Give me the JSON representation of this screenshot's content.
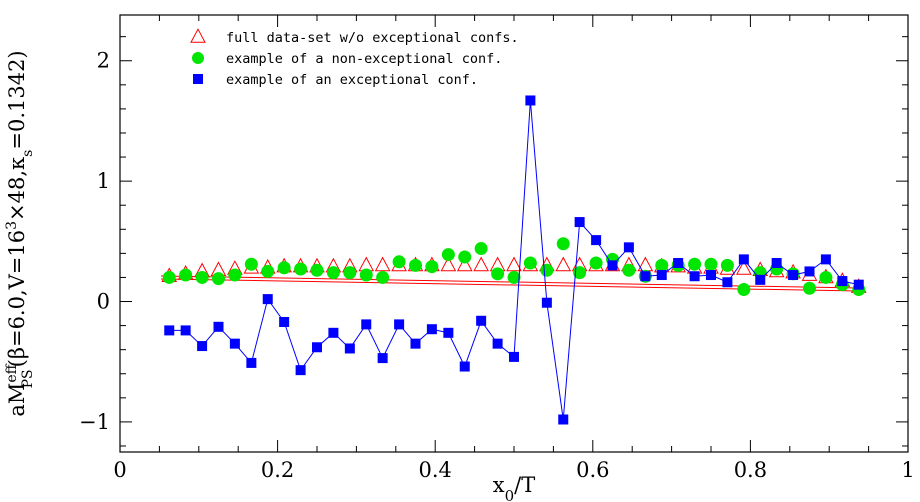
{
  "chart_data": {
    "type": "scatter",
    "xlabel": "x0/T",
    "ylabel": "aMPSeff(β=6.0,V=163×48,κs=0.1342)",
    "xlabel_parts": {
      "main": "x",
      "sub": "0",
      "rest": "/T"
    },
    "ylabel_parts": {
      "prefix": "aM",
      "sup": "eff",
      "sub": "PS",
      "mid": "(β=6.0,V=16",
      "sup2": "3",
      "tail": "×48,κ",
      "sub2": "s",
      "end": "=0.1342)"
    },
    "xlim": [
      0,
      1
    ],
    "ylim": [
      -1.25,
      2.38
    ],
    "x_ticks": [
      0,
      0.2,
      0.4,
      0.6,
      0.8,
      1
    ],
    "x_tick_labels": [
      "0",
      "0.2",
      "0.4",
      "0.6",
      "0.8",
      "1"
    ],
    "y_ticks": [
      -1,
      0,
      1,
      2
    ],
    "y_tick_labels": [
      "−1",
      "0",
      "1",
      "2"
    ],
    "legend_position": "top-left",
    "series": [
      {
        "name": "full data-set w/o exceptional confs.",
        "marker": "triangle-open",
        "color": "#ff0000",
        "fit_line": {
          "x": [
            0.0521,
            0.9375
          ],
          "y": [
            0.2,
            0.1
          ]
        },
        "x": [
          0.0625,
          0.0833,
          0.1042,
          0.125,
          0.1458,
          0.1667,
          0.1875,
          0.2083,
          0.2292,
          0.25,
          0.2708,
          0.2917,
          0.3125,
          0.3333,
          0.3542,
          0.375,
          0.3958,
          0.4167,
          0.4375,
          0.4583,
          0.4792,
          0.5,
          0.5208,
          0.5417,
          0.5625,
          0.5833,
          0.6042,
          0.625,
          0.6458,
          0.6667,
          0.6875,
          0.7083,
          0.7292,
          0.75,
          0.7708,
          0.7917,
          0.8125,
          0.8333,
          0.8542,
          0.875,
          0.8958,
          0.9167,
          0.9375
        ],
        "y": [
          0.21,
          0.23,
          0.25,
          0.26,
          0.27,
          0.28,
          0.28,
          0.29,
          0.29,
          0.29,
          0.29,
          0.29,
          0.3,
          0.3,
          0.3,
          0.3,
          0.3,
          0.3,
          0.3,
          0.3,
          0.3,
          0.3,
          0.3,
          0.3,
          0.3,
          0.3,
          0.3,
          0.3,
          0.3,
          0.3,
          0.29,
          0.29,
          0.28,
          0.28,
          0.27,
          0.27,
          0.26,
          0.25,
          0.24,
          0.22,
          0.2,
          0.17,
          0.12
        ]
      },
      {
        "name": "example of a non-exceptional conf.",
        "marker": "circle-filled",
        "color": "#00e600",
        "x": [
          0.0625,
          0.0833,
          0.1042,
          0.125,
          0.1458,
          0.1667,
          0.1875,
          0.2083,
          0.2292,
          0.25,
          0.2708,
          0.2917,
          0.3125,
          0.3333,
          0.3542,
          0.375,
          0.3958,
          0.4167,
          0.4375,
          0.4583,
          0.4792,
          0.5,
          0.5208,
          0.5417,
          0.5625,
          0.5833,
          0.6042,
          0.625,
          0.6458,
          0.6667,
          0.6875,
          0.7083,
          0.7292,
          0.75,
          0.7708,
          0.7917,
          0.8125,
          0.8333,
          0.8542,
          0.875,
          0.8958,
          0.9167,
          0.9375
        ],
        "y": [
          0.2,
          0.22,
          0.2,
          0.19,
          0.22,
          0.31,
          0.25,
          0.28,
          0.27,
          0.26,
          0.24,
          0.24,
          0.22,
          0.2,
          0.33,
          0.3,
          0.29,
          0.39,
          0.37,
          0.44,
          0.23,
          0.2,
          0.32,
          0.26,
          0.48,
          0.24,
          0.32,
          0.35,
          0.26,
          0.21,
          0.3,
          0.3,
          0.31,
          0.31,
          0.3,
          0.1,
          0.24,
          0.27,
          0.23,
          0.11,
          0.2,
          0.14,
          0.1
        ]
      },
      {
        "name": "example of an exceptional conf.",
        "marker": "square-filled",
        "color": "#0000ff",
        "x": [
          0.0625,
          0.0833,
          0.1042,
          0.125,
          0.1458,
          0.1667,
          0.1875,
          0.2083,
          0.2292,
          0.25,
          0.2708,
          0.2917,
          0.3125,
          0.3333,
          0.3542,
          0.375,
          0.3958,
          0.4167,
          0.4375,
          0.4583,
          0.4792,
          0.5,
          0.5208,
          0.5417,
          0.5625,
          0.5833,
          0.6042,
          0.625,
          0.6458,
          0.6667,
          0.6875,
          0.7083,
          0.7292,
          0.75,
          0.7708,
          0.7917,
          0.8125,
          0.8333,
          0.8542,
          0.875,
          0.8958,
          0.9167,
          0.9375
        ],
        "y": [
          -0.24,
          -0.24,
          -0.37,
          -0.21,
          -0.35,
          -0.51,
          0.02,
          -0.17,
          -0.57,
          -0.38,
          -0.26,
          -0.39,
          -0.19,
          -0.47,
          -0.19,
          -0.35,
          -0.23,
          -0.26,
          -0.54,
          -0.16,
          -0.35,
          -0.46,
          1.67,
          -0.01,
          -0.98,
          0.66,
          0.51,
          0.3,
          0.45,
          0.21,
          0.22,
          0.32,
          0.21,
          0.22,
          0.16,
          0.35,
          0.18,
          0.32,
          0.22,
          0.25,
          0.35,
          0.17,
          0.14
        ]
      }
    ]
  }
}
